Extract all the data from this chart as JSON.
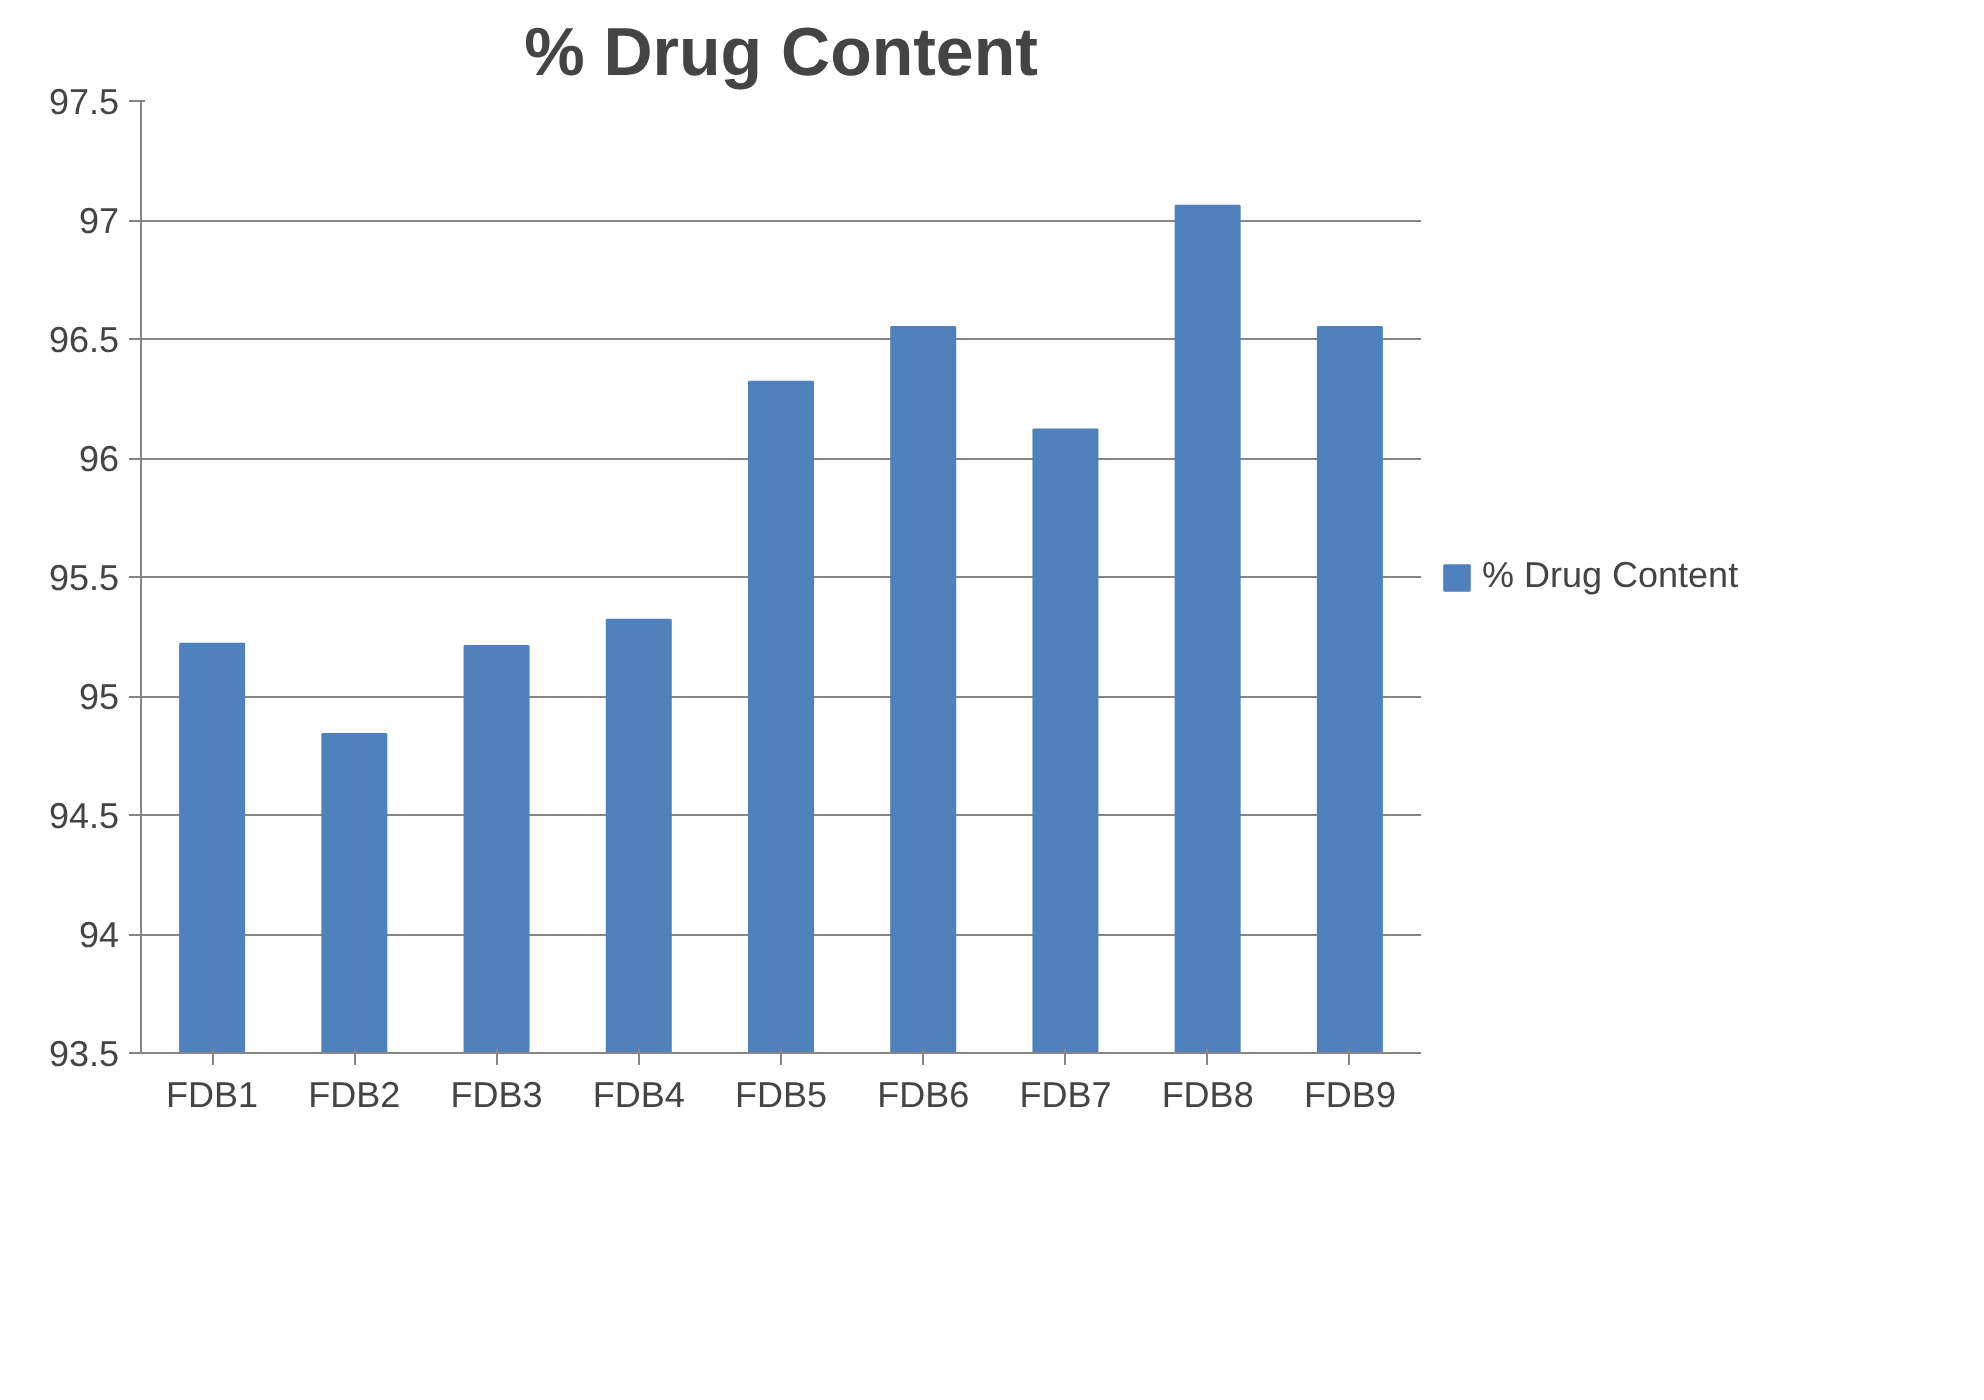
{
  "chart_data": {
    "type": "bar",
    "title": "% Drug Content",
    "categories": [
      "FDB1",
      "FDB2",
      "FDB3",
      "FDB4",
      "FDB5",
      "FDB6",
      "FDB7",
      "FDB8",
      "FDB9"
    ],
    "series": [
      {
        "name": "% Drug Content",
        "color": "#4f81bd",
        "values": [
          95.22,
          94.84,
          95.21,
          95.32,
          96.32,
          96.55,
          96.12,
          97.06,
          96.55
        ]
      }
    ],
    "ylim": [
      93.5,
      97.5
    ],
    "yticks": [
      93.5,
      94,
      94.5,
      95,
      95.5,
      96,
      96.5,
      97,
      97.5
    ],
    "grid": "y",
    "legend": "right"
  }
}
